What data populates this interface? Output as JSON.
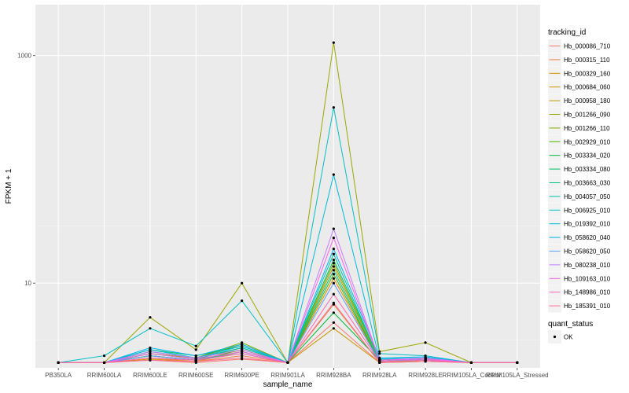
{
  "chart_data": {
    "type": "line",
    "ylabel": "FPKM + 1",
    "xlabel": "sample_name",
    "yscale": "log10",
    "ylim": [
      1.8,
      2800
    ],
    "y_ticks": [
      10,
      1000
    ],
    "y_tick_labels": [
      "10",
      "1000"
    ],
    "grid": true,
    "legend_position": "right",
    "categories": [
      "PB350LA",
      "RRIM600LA",
      "RRIM600LE",
      "RRIM600SE",
      "RRIM600PE",
      "RRIM901LA",
      "RRIM928BA",
      "RRIM928LA",
      "RRIM928LE",
      "RRIM105LA_Control",
      "RRIM105LA_Stressed"
    ],
    "series": [
      {
        "name": "Hb_000086_710",
        "color": "#F8766D",
        "values": [
          2,
          2,
          2.1,
          2,
          2.15,
          2,
          4.5,
          2,
          2.05,
          2,
          2
        ]
      },
      {
        "name": "Hb_000315_110",
        "color": "#EE8043",
        "values": [
          2,
          2,
          2.2,
          2.05,
          2.3,
          2,
          6.5,
          2,
          2.1,
          2,
          2
        ]
      },
      {
        "name": "Hb_000329_160",
        "color": "#E08B00",
        "values": [
          2,
          2,
          2.3,
          2.1,
          2.6,
          2,
          11,
          2.05,
          2.15,
          2,
          2
        ]
      },
      {
        "name": "Hb_000684_060",
        "color": "#CD9600",
        "values": [
          2,
          2,
          2.15,
          2.05,
          2.5,
          2,
          4,
          2,
          2.1,
          2,
          2
        ]
      },
      {
        "name": "Hb_000958_180",
        "color": "#B79F00",
        "values": [
          2,
          2,
          2.4,
          2.2,
          2.9,
          2,
          14,
          2.1,
          2.2,
          2,
          2
        ]
      },
      {
        "name": "Hb_001266_090",
        "color": "#9DA700",
        "values": [
          2,
          2,
          5,
          2.6,
          10,
          2,
          1300,
          2.5,
          3,
          2,
          2
        ]
      },
      {
        "name": "Hb_001266_110",
        "color": "#7CAE00",
        "values": [
          2,
          2,
          2.5,
          2.2,
          3,
          2,
          15,
          2.1,
          2.2,
          2,
          2
        ]
      },
      {
        "name": "Hb_002929_010",
        "color": "#49B500",
        "values": [
          2,
          2,
          2.3,
          2.1,
          2.6,
          2,
          12,
          2.05,
          2.15,
          2,
          2
        ]
      },
      {
        "name": "Hb_003334_020",
        "color": "#00BA38",
        "values": [
          2,
          2,
          2.4,
          2.15,
          2.7,
          2,
          5.5,
          2.1,
          2.2,
          2,
          2
        ]
      },
      {
        "name": "Hb_003334_080",
        "color": "#00BE67",
        "values": [
          2,
          2,
          2.6,
          2.3,
          2.8,
          2,
          16,
          2.15,
          2.2,
          2,
          2
        ]
      },
      {
        "name": "Hb_003663_030",
        "color": "#00C08B",
        "values": [
          2,
          2,
          2.3,
          2.1,
          2.5,
          2,
          13,
          2.05,
          2.1,
          2,
          2
        ]
      },
      {
        "name": "Hb_004057_050",
        "color": "#00C1AA",
        "values": [
          2,
          2,
          2.5,
          2.2,
          2.7,
          2,
          18,
          2.1,
          2.2,
          2,
          2
        ]
      },
      {
        "name": "Hb_006925_010",
        "color": "#00BFC4",
        "values": [
          2,
          2.3,
          4,
          2.8,
          7,
          2,
          350,
          2.4,
          2.3,
          2,
          2
        ]
      },
      {
        "name": "Hb_019392_010",
        "color": "#00BBDB",
        "values": [
          2,
          2,
          2.6,
          2.2,
          2.8,
          2,
          90,
          2.15,
          2.2,
          2,
          2
        ]
      },
      {
        "name": "Hb_058620_040",
        "color": "#00B4EF",
        "values": [
          2,
          2,
          2.7,
          2.3,
          2.9,
          2,
          20,
          2.2,
          2.25,
          2,
          2
        ]
      },
      {
        "name": "Hb_058620_050",
        "color": "#619CFF",
        "values": [
          2,
          2,
          2.3,
          2.1,
          2.4,
          2,
          10,
          2.05,
          2.15,
          2,
          2
        ]
      },
      {
        "name": "Hb_080238_010",
        "color": "#C77CFF",
        "values": [
          2,
          2,
          2.5,
          2.2,
          2.6,
          2,
          30,
          2.1,
          2.2,
          2,
          2
        ]
      },
      {
        "name": "Hb_109163_010",
        "color": "#F564E3",
        "values": [
          2,
          2,
          2.4,
          2.15,
          2.5,
          2,
          25,
          2.1,
          2.15,
          2,
          2
        ]
      },
      {
        "name": "Hb_148986_010",
        "color": "#FF64B0",
        "values": [
          2,
          2,
          2.2,
          2.1,
          2.4,
          2,
          8,
          2.05,
          2.1,
          2,
          2
        ]
      },
      {
        "name": "Hb_185391_010",
        "color": "#FF6C91",
        "values": [
          2,
          2,
          2.1,
          2.05,
          2.2,
          2,
          6.7,
          2,
          2.05,
          2,
          2
        ]
      }
    ],
    "legend_title": "tracking_id",
    "legend2": {
      "title": "quant_status",
      "label": "OK"
    }
  }
}
